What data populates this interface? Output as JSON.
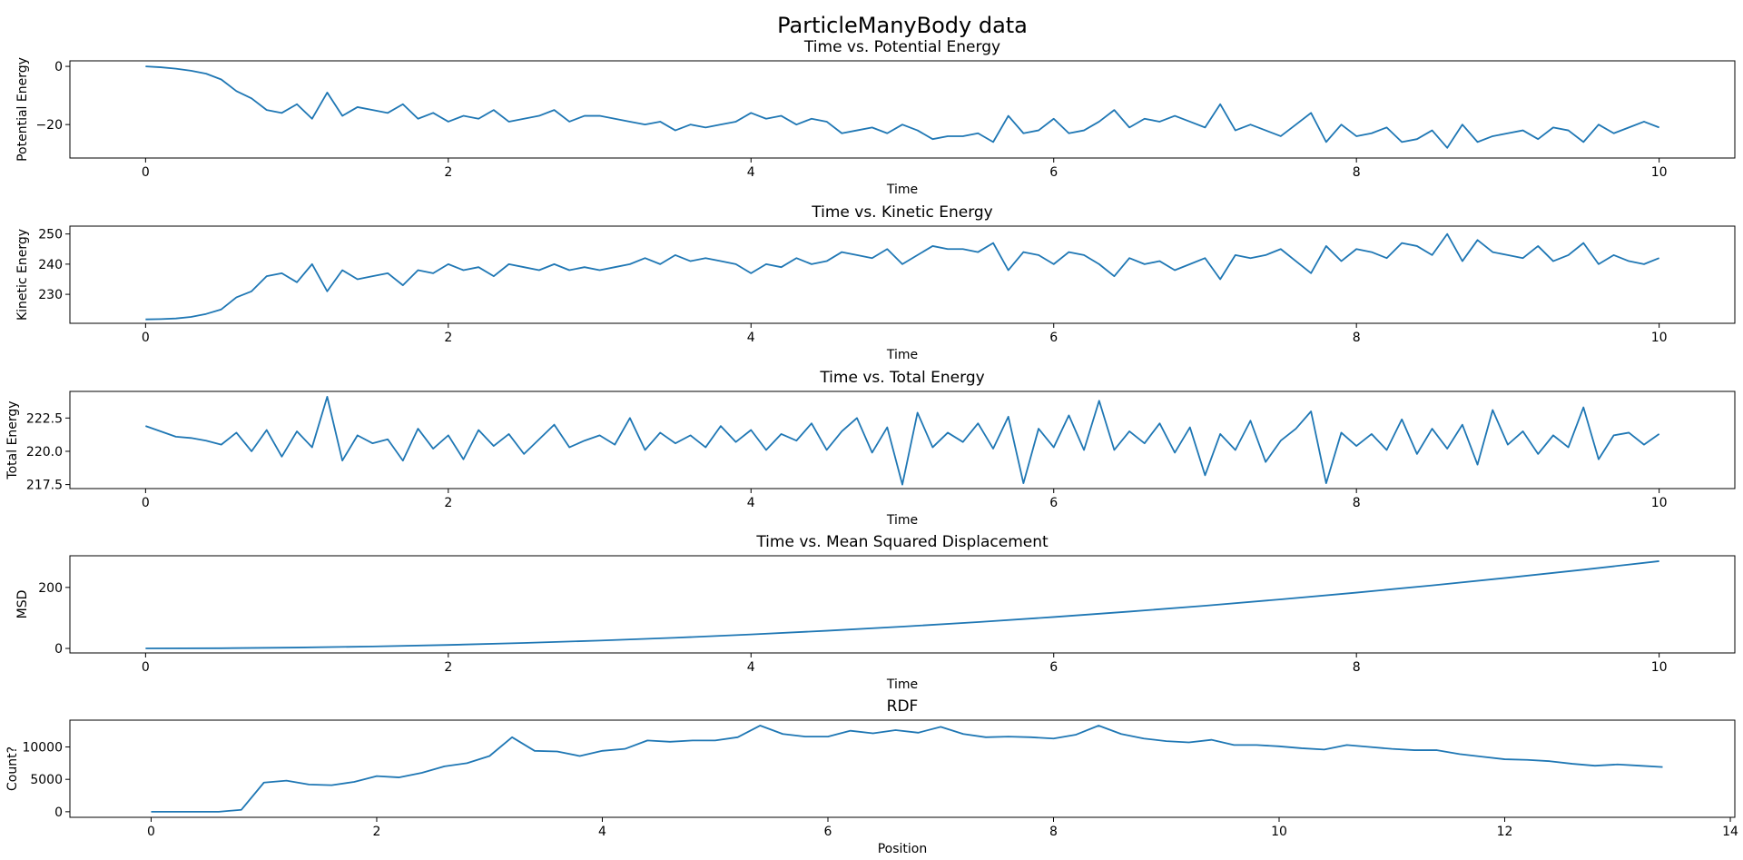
{
  "title": "ParticleManyBody data",
  "chart_data": [
    {
      "type": "line",
      "title": "Time vs. Potential Energy",
      "xlabel": "Time",
      "ylabel": "Potential Energy",
      "color": "#1f77b4",
      "xlim": [
        -0.5,
        10.5
      ],
      "xticks": [
        0,
        2,
        4,
        6,
        8,
        10
      ],
      "ylim": [
        -31.5,
        1.9
      ],
      "yticks": [
        {
          "value": -20,
          "label": "−20"
        },
        0
      ],
      "x": [
        0,
        0.1,
        0.2,
        0.3,
        0.4,
        0.5,
        0.6,
        0.7,
        0.8,
        0.9,
        1,
        1.1,
        1.2,
        1.3,
        1.4,
        1.5,
        1.6,
        1.7,
        1.8,
        1.9,
        2,
        2.1,
        2.2,
        2.3,
        2.4,
        2.5,
        2.6,
        2.7,
        2.8,
        2.9,
        3,
        3.1,
        3.2,
        3.3,
        3.4,
        3.5,
        3.6,
        3.7,
        3.8,
        3.9,
        4,
        4.1,
        4.2,
        4.3,
        4.4,
        4.5,
        4.6,
        4.7,
        4.8,
        4.9,
        5,
        5.1,
        5.2,
        5.3,
        5.4,
        5.5,
        5.6,
        5.7,
        5.8,
        5.9,
        6,
        6.1,
        6.2,
        6.3,
        6.4,
        6.5,
        6.6,
        6.7,
        6.8,
        6.9,
        7,
        7.1,
        7.2,
        7.3,
        7.4,
        7.5,
        7.6,
        7.7,
        7.8,
        7.9,
        8,
        8.1,
        8.2,
        8.3,
        8.4,
        8.5,
        8.6,
        8.7,
        8.8,
        8.9,
        9,
        9.1,
        9.2,
        9.3,
        9.4,
        9.5,
        9.6,
        9.7,
        9.8,
        9.9,
        10
      ],
      "values": [
        0,
        -0.3,
        -0.8,
        -1.5,
        -2.5,
        -4.5,
        -8.5,
        -11,
        -15,
        -16,
        -13,
        -18,
        -9,
        -17,
        -14,
        -15,
        -16,
        -13,
        -18,
        -16,
        -19,
        -17,
        -18,
        -15,
        -19,
        -18,
        -17,
        -15,
        -19,
        -17,
        -17,
        -18,
        -19,
        -20,
        -19,
        -22,
        -20,
        -21,
        -20,
        -19,
        -16,
        -18,
        -17,
        -20,
        -18,
        -19,
        -23,
        -22,
        -21,
        -23,
        -20,
        -22,
        -25,
        -24,
        -24,
        -23,
        -26,
        -17,
        -23,
        -22,
        -18,
        -23,
        -22,
        -19,
        -15,
        -21,
        -18,
        -19,
        -17,
        -19,
        -21,
        -13,
        -22,
        -20,
        -22,
        -24,
        -20,
        -16,
        -26,
        -20,
        -24,
        -23,
        -21,
        -26,
        -25,
        -22,
        -28,
        -20,
        -26,
        -24,
        -23,
        -22,
        -25,
        -21,
        -22,
        -26,
        -20,
        -23,
        -21,
        -19,
        -21
      ]
    },
    {
      "type": "line",
      "title": "Time vs. Kinetic Energy",
      "xlabel": "Time",
      "ylabel": "Kinetic Energy",
      "color": "#1f77b4",
      "xlim": [
        -0.5,
        10.5
      ],
      "xticks": [
        0,
        2,
        4,
        6,
        8,
        10
      ],
      "ylim": [
        220.4,
        252.6
      ],
      "yticks": [
        230,
        240,
        250
      ],
      "x": [
        0,
        0.1,
        0.2,
        0.3,
        0.4,
        0.5,
        0.6,
        0.7,
        0.8,
        0.9,
        1,
        1.1,
        1.2,
        1.3,
        1.4,
        1.5,
        1.6,
        1.7,
        1.8,
        1.9,
        2,
        2.1,
        2.2,
        2.3,
        2.4,
        2.5,
        2.6,
        2.7,
        2.8,
        2.9,
        3,
        3.1,
        3.2,
        3.3,
        3.4,
        3.5,
        3.6,
        3.7,
        3.8,
        3.9,
        4,
        4.1,
        4.2,
        4.3,
        4.4,
        4.5,
        4.6,
        4.7,
        4.8,
        4.9,
        5,
        5.1,
        5.2,
        5.3,
        5.4,
        5.5,
        5.6,
        5.7,
        5.8,
        5.9,
        6,
        6.1,
        6.2,
        6.3,
        6.4,
        6.5,
        6.6,
        6.7,
        6.8,
        6.9,
        7,
        7.1,
        7.2,
        7.3,
        7.4,
        7.5,
        7.6,
        7.7,
        7.8,
        7.9,
        8,
        8.1,
        8.2,
        8.3,
        8.4,
        8.5,
        8.6,
        8.7,
        8.8,
        8.9,
        9,
        9.1,
        9.2,
        9.3,
        9.4,
        9.5,
        9.6,
        9.7,
        9.8,
        9.9,
        10
      ],
      "values": [
        221.7,
        221.8,
        222,
        222.5,
        223.5,
        225,
        229,
        231,
        236,
        237,
        234,
        240,
        231,
        238,
        235,
        236,
        237,
        233,
        238,
        237,
        240,
        238,
        239,
        236,
        240,
        239,
        238,
        240,
        238,
        239,
        238,
        239,
        240,
        242,
        240,
        243,
        241,
        242,
        241,
        240,
        237,
        240,
        239,
        242,
        240,
        241,
        244,
        243,
        242,
        245,
        240,
        243,
        246,
        245,
        245,
        244,
        247,
        238,
        244,
        243,
        240,
        244,
        243,
        240,
        236,
        242,
        240,
        241,
        238,
        240,
        242,
        235,
        243,
        242,
        243,
        245,
        241,
        237,
        246,
        241,
        245,
        244,
        242,
        247,
        246,
        243,
        250,
        241,
        248,
        244,
        243,
        242,
        246,
        241,
        243,
        247,
        240,
        243,
        241,
        240,
        242
      ]
    },
    {
      "type": "line",
      "title": "Time vs. Total Energy",
      "xlabel": "Time",
      "ylabel": "Total Energy",
      "color": "#1f77b4",
      "xlim": [
        -0.5,
        10.5
      ],
      "xticks": [
        0,
        2,
        4,
        6,
        8,
        10
      ],
      "ylim": [
        217.2,
        224.5
      ],
      "yticks": [
        217.5,
        {
          "value": 220,
          "label": "220.0"
        },
        222.5
      ],
      "x": [
        0,
        0.1,
        0.2,
        0.3,
        0.4,
        0.5,
        0.6,
        0.7,
        0.8,
        0.9,
        1,
        1.1,
        1.2,
        1.3,
        1.4,
        1.5,
        1.6,
        1.7,
        1.8,
        1.9,
        2,
        2.1,
        2.2,
        2.3,
        2.4,
        2.5,
        2.6,
        2.7,
        2.8,
        2.9,
        3,
        3.1,
        3.2,
        3.3,
        3.4,
        3.5,
        3.6,
        3.7,
        3.8,
        3.9,
        4,
        4.1,
        4.2,
        4.3,
        4.4,
        4.5,
        4.6,
        4.7,
        4.8,
        4.9,
        5,
        5.1,
        5.2,
        5.3,
        5.4,
        5.5,
        5.6,
        5.7,
        5.8,
        5.9,
        6,
        6.1,
        6.2,
        6.3,
        6.4,
        6.5,
        6.6,
        6.7,
        6.8,
        6.9,
        7,
        7.1,
        7.2,
        7.3,
        7.4,
        7.5,
        7.6,
        7.7,
        7.8,
        7.9,
        8,
        8.1,
        8.2,
        8.3,
        8.4,
        8.5,
        8.6,
        8.7,
        8.8,
        8.9,
        9,
        9.1,
        9.2,
        9.3,
        9.4,
        9.5,
        9.6,
        9.7,
        9.8,
        9.9,
        10
      ],
      "values": [
        221.9,
        221.5,
        221.1,
        221,
        220.8,
        220.5,
        221.4,
        220,
        221.6,
        219.6,
        221.5,
        220.3,
        224.1,
        219.3,
        221.2,
        220.6,
        220.9,
        219.3,
        221.7,
        220.2,
        221.2,
        219.4,
        221.6,
        220.4,
        221.3,
        219.8,
        220.9,
        222,
        220.3,
        220.8,
        221.2,
        220.5,
        222.5,
        220.1,
        221.4,
        220.6,
        221.2,
        220.3,
        221.9,
        220.7,
        221.6,
        220.1,
        221.3,
        220.8,
        222.1,
        220.1,
        221.5,
        222.5,
        219.9,
        221.8,
        217.5,
        222.9,
        220.3,
        221.4,
        220.7,
        222.1,
        220.2,
        222.6,
        217.6,
        221.7,
        220.3,
        222.7,
        220.1,
        223.8,
        220.1,
        221.5,
        220.6,
        222.1,
        219.9,
        221.8,
        218.2,
        221.3,
        220.1,
        222.3,
        219.2,
        220.8,
        221.7,
        223,
        217.6,
        221.4,
        220.4,
        221.3,
        220.1,
        222.4,
        219.8,
        221.7,
        220.2,
        222,
        219,
        223.1,
        220.5,
        221.5,
        219.8,
        221.2,
        220.3,
        223.3,
        219.4,
        221.2,
        221.4,
        220.5,
        221.3
      ]
    },
    {
      "type": "line",
      "title": "Time vs. Mean Squared Displacement",
      "xlabel": "Time",
      "ylabel": "MSD",
      "color": "#1f77b4",
      "xlim": [
        -0.5,
        10.5
      ],
      "xticks": [
        0,
        2,
        4,
        6,
        8,
        10
      ],
      "ylim": [
        -14.8,
        303.7
      ],
      "yticks": [
        0,
        200
      ],
      "x": [
        0,
        0.5,
        1,
        1.5,
        2,
        2.5,
        3,
        3.5,
        4,
        4.5,
        5,
        5.5,
        6,
        6.5,
        7,
        7.5,
        8,
        8.5,
        9,
        9.5,
        10
      ],
      "values": [
        0,
        0.7,
        2.9,
        6.4,
        11.4,
        17.9,
        25.7,
        35,
        45.8,
        57.9,
        71.5,
        86.5,
        103,
        120.8,
        140.1,
        160.9,
        183,
        206.6,
        231.7,
        258.1,
        286
      ]
    },
    {
      "type": "line",
      "title": "RDF",
      "xlabel": "Position",
      "ylabel": "Count?",
      "color": "#1f77b4",
      "xlim": [
        -0.72,
        14.04
      ],
      "xticks": [
        0,
        2,
        4,
        6,
        8,
        10,
        12,
        14
      ],
      "ylim": [
        -862,
        14138
      ],
      "yticks": [
        0,
        5000,
        10000
      ],
      "x": [
        0,
        0.2,
        0.4,
        0.6,
        0.8,
        1,
        1.2,
        1.4,
        1.6,
        1.8,
        2,
        2.2,
        2.4,
        2.6,
        2.8,
        3,
        3.2,
        3.4,
        3.6,
        3.8,
        4,
        4.2,
        4.4,
        4.6,
        4.8,
        5,
        5.2,
        5.4,
        5.6,
        5.8,
        6,
        6.2,
        6.4,
        6.6,
        6.8,
        7,
        7.2,
        7.4,
        7.6,
        7.8,
        8,
        8.2,
        8.4,
        8.6,
        8.8,
        9,
        9.2,
        9.4,
        9.6,
        9.8,
        10,
        10.2,
        10.4,
        10.6,
        10.8,
        11,
        11.2,
        11.4,
        11.6,
        11.8,
        12,
        12.2,
        12.4,
        12.6,
        12.8,
        13,
        13.2,
        13.4
      ],
      "values": [
        0,
        0,
        0,
        0,
        300,
        4500,
        4800,
        4200,
        4100,
        4600,
        5500,
        5300,
        6000,
        7000,
        7500,
        8600,
        11500,
        9400,
        9300,
        8600,
        9400,
        9700,
        11000,
        10800,
        11000,
        11000,
        11500,
        13300,
        12000,
        11600,
        11600,
        12500,
        12100,
        12600,
        12200,
        13100,
        12000,
        11500,
        11600,
        11500,
        11300,
        11900,
        13300,
        12000,
        11300,
        10900,
        10700,
        11100,
        10300,
        10300,
        10100,
        9800,
        9600,
        10300,
        10000,
        9700,
        9500,
        9500,
        8900,
        8500,
        8100,
        8000,
        7800,
        7400,
        7100,
        7300,
        7100,
        6900
      ]
    }
  ]
}
